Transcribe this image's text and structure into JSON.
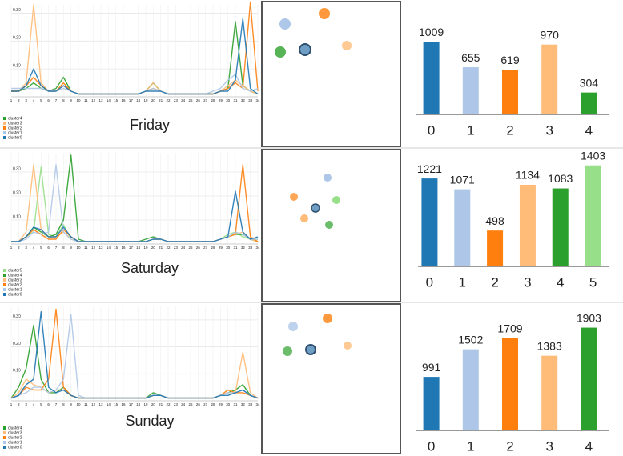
{
  "chart_data": [
    {
      "type": "line",
      "title": "Friday",
      "categories": [
        "1",
        "2",
        "3",
        "4",
        "5",
        "6",
        "7",
        "8",
        "9",
        "10",
        "11",
        "12",
        "13",
        "14",
        "15",
        "16",
        "17",
        "18",
        "19",
        "20",
        "21",
        "22",
        "23",
        "24",
        "25",
        "26",
        "27",
        "28",
        "29",
        "30",
        "31",
        "32",
        "33",
        "34"
      ],
      "ylim": [
        0,
        0.33
      ],
      "yticks": [
        {
          "value": 0.1,
          "label": "0.10"
        },
        {
          "value": 0.2,
          "label": "0.20"
        },
        {
          "value": 0.3,
          "label": "0.30"
        }
      ],
      "grid": true,
      "series": [
        {
          "name": "cluster4",
          "color": "#2ca02c",
          "values": [
            0.02,
            0.02,
            0.03,
            0.05,
            0.03,
            0.02,
            0.03,
            0.07,
            0.02,
            0.01,
            0.01,
            0.01,
            0.01,
            0.01,
            0.01,
            0.01,
            0.01,
            0.01,
            0.02,
            0.05,
            0.02,
            0.01,
            0.01,
            0.01,
            0.01,
            0.01,
            0.01,
            0.01,
            0.02,
            0.03,
            0.27,
            0.04,
            0.02,
            0.01
          ]
        },
        {
          "name": "cluster3",
          "color": "#ffbb78",
          "values": [
            0.02,
            0.02,
            0.05,
            0.33,
            0.05,
            0.02,
            0.02,
            0.04,
            0.02,
            0.01,
            0.01,
            0.01,
            0.01,
            0.01,
            0.01,
            0.01,
            0.01,
            0.01,
            0.02,
            0.05,
            0.02,
            0.01,
            0.01,
            0.01,
            0.01,
            0.01,
            0.01,
            0.01,
            0.02,
            0.04,
            0.06,
            0.04,
            0.02,
            0.01
          ]
        },
        {
          "name": "cluster2",
          "color": "#ff7f0e",
          "values": [
            0.02,
            0.02,
            0.04,
            0.07,
            0.04,
            0.02,
            0.02,
            0.05,
            0.02,
            0.01,
            0.01,
            0.01,
            0.01,
            0.01,
            0.01,
            0.01,
            0.01,
            0.01,
            0.02,
            0.03,
            0.02,
            0.01,
            0.01,
            0.01,
            0.01,
            0.01,
            0.01,
            0.01,
            0.02,
            0.03,
            0.05,
            0.03,
            0.34,
            0.02
          ]
        },
        {
          "name": "cluster1",
          "color": "#aec7e8",
          "values": [
            0.03,
            0.03,
            0.03,
            0.03,
            0.03,
            0.02,
            0.02,
            0.03,
            0.02,
            0.01,
            0.01,
            0.01,
            0.01,
            0.01,
            0.01,
            0.01,
            0.01,
            0.01,
            0.02,
            0.03,
            0.02,
            0.01,
            0.01,
            0.01,
            0.01,
            0.01,
            0.01,
            0.02,
            0.03,
            0.06,
            0.08,
            0.03,
            0.02,
            0.03
          ]
        },
        {
          "name": "cluster0",
          "color": "#1f77b4",
          "values": [
            0.02,
            0.02,
            0.04,
            0.1,
            0.04,
            0.02,
            0.02,
            0.04,
            0.02,
            0.01,
            0.01,
            0.01,
            0.01,
            0.01,
            0.01,
            0.01,
            0.01,
            0.01,
            0.02,
            0.02,
            0.02,
            0.01,
            0.01,
            0.01,
            0.01,
            0.01,
            0.01,
            0.01,
            0.02,
            0.02,
            0.06,
            0.28,
            0.03,
            0.01
          ]
        }
      ]
    },
    {
      "type": "bar",
      "categories": [
        "0",
        "1",
        "2",
        "3",
        "4"
      ],
      "values": [
        1009,
        655,
        619,
        970,
        304
      ],
      "colors": [
        "#1f77b4",
        "#aec7e8",
        "#ff7f0e",
        "#ffbb78",
        "#2ca02c"
      ],
      "ylim": [
        0,
        1500
      ]
    },
    {
      "type": "line",
      "title": "Saturday",
      "categories": [
        "1",
        "2",
        "3",
        "4",
        "5",
        "6",
        "7",
        "8",
        "9",
        "10",
        "11",
        "12",
        "13",
        "14",
        "15",
        "16",
        "17",
        "18",
        "19",
        "20",
        "21",
        "22",
        "23",
        "24",
        "25",
        "26",
        "27",
        "28",
        "29",
        "30",
        "31",
        "32",
        "33",
        "34"
      ],
      "ylim": [
        0,
        0.38
      ],
      "yticks": [
        {
          "value": 0.1,
          "label": "0.10"
        },
        {
          "value": 0.2,
          "label": "0.20"
        },
        {
          "value": 0.3,
          "label": "0.30"
        }
      ],
      "grid": true,
      "series": [
        {
          "name": "cluster5",
          "color": "#98df8a",
          "values": [
            0.01,
            0.01,
            0.03,
            0.05,
            0.32,
            0.04,
            0.03,
            0.08,
            0.02,
            0.01,
            0.01,
            0.01,
            0.01,
            0.01,
            0.01,
            0.01,
            0.01,
            0.01,
            0.01,
            0.02,
            0.02,
            0.01,
            0.01,
            0.01,
            0.01,
            0.01,
            0.01,
            0.01,
            0.02,
            0.04,
            0.05,
            0.03,
            0.02,
            0.02
          ]
        },
        {
          "name": "cluster4",
          "color": "#2ca02c",
          "values": [
            0.01,
            0.01,
            0.03,
            0.07,
            0.05,
            0.03,
            0.04,
            0.1,
            0.37,
            0.02,
            0.01,
            0.01,
            0.01,
            0.01,
            0.01,
            0.01,
            0.01,
            0.01,
            0.02,
            0.03,
            0.02,
            0.01,
            0.01,
            0.01,
            0.01,
            0.01,
            0.01,
            0.01,
            0.02,
            0.03,
            0.04,
            0.04,
            0.02,
            0.01
          ]
        },
        {
          "name": "cluster3",
          "color": "#ffbb78",
          "values": [
            0.01,
            0.01,
            0.05,
            0.33,
            0.06,
            0.03,
            0.03,
            0.05,
            0.02,
            0.01,
            0.01,
            0.01,
            0.01,
            0.01,
            0.01,
            0.01,
            0.01,
            0.01,
            0.01,
            0.02,
            0.02,
            0.01,
            0.01,
            0.01,
            0.01,
            0.01,
            0.01,
            0.01,
            0.02,
            0.03,
            0.04,
            0.05,
            0.02,
            0.01
          ]
        },
        {
          "name": "cluster2",
          "color": "#ff7f0e",
          "values": [
            0.01,
            0.01,
            0.03,
            0.06,
            0.04,
            0.02,
            0.02,
            0.06,
            0.03,
            0.01,
            0.01,
            0.01,
            0.01,
            0.01,
            0.01,
            0.01,
            0.01,
            0.01,
            0.01,
            0.02,
            0.02,
            0.01,
            0.01,
            0.01,
            0.01,
            0.01,
            0.01,
            0.01,
            0.02,
            0.03,
            0.04,
            0.33,
            0.03,
            0.01
          ]
        },
        {
          "name": "cluster1",
          "color": "#aec7e8",
          "values": [
            0.01,
            0.01,
            0.02,
            0.05,
            0.04,
            0.05,
            0.33,
            0.05,
            0.02,
            0.01,
            0.01,
            0.01,
            0.01,
            0.01,
            0.01,
            0.01,
            0.01,
            0.01,
            0.01,
            0.02,
            0.02,
            0.01,
            0.01,
            0.01,
            0.01,
            0.01,
            0.01,
            0.01,
            0.02,
            0.03,
            0.05,
            0.04,
            0.02,
            0.02
          ]
        },
        {
          "name": "cluster0",
          "color": "#1f77b4",
          "values": [
            0.01,
            0.01,
            0.03,
            0.07,
            0.06,
            0.03,
            0.03,
            0.07,
            0.03,
            0.01,
            0.01,
            0.01,
            0.01,
            0.01,
            0.01,
            0.01,
            0.01,
            0.01,
            0.01,
            0.02,
            0.02,
            0.01,
            0.01,
            0.01,
            0.01,
            0.01,
            0.01,
            0.01,
            0.02,
            0.03,
            0.22,
            0.05,
            0.02,
            0.03
          ]
        }
      ]
    },
    {
      "type": "bar",
      "categories": [
        "0",
        "1",
        "2",
        "3",
        "4",
        "5"
      ],
      "values": [
        1221,
        1071,
        498,
        1134,
        1083,
        1403
      ],
      "colors": [
        "#1f77b4",
        "#aec7e8",
        "#ff7f0e",
        "#ffbb78",
        "#2ca02c",
        "#98df8a"
      ],
      "ylim": [
        0,
        1500
      ]
    },
    {
      "type": "line",
      "title": "Sunday",
      "categories": [
        "1",
        "2",
        "3",
        "4",
        "5",
        "6",
        "7",
        "8",
        "9",
        "10",
        "11",
        "12",
        "13",
        "14",
        "15",
        "16",
        "17",
        "18",
        "19",
        "20",
        "21",
        "22",
        "23",
        "24",
        "25",
        "26",
        "27",
        "28",
        "29",
        "30",
        "31",
        "32",
        "33",
        "34"
      ],
      "ylim": [
        0,
        0.35
      ],
      "yticks": [
        {
          "value": 0.1,
          "label": "0.10"
        },
        {
          "value": 0.2,
          "label": "0.20"
        },
        {
          "value": 0.3,
          "label": "0.30"
        }
      ],
      "grid": true,
      "series": [
        {
          "name": "cluster4",
          "color": "#2ca02c",
          "values": [
            0.01,
            0.05,
            0.12,
            0.28,
            0.08,
            0.03,
            0.03,
            0.05,
            0.02,
            0.01,
            0.01,
            0.01,
            0.01,
            0.01,
            0.01,
            0.01,
            0.01,
            0.01,
            0.01,
            0.03,
            0.02,
            0.01,
            0.01,
            0.01,
            0.01,
            0.01,
            0.01,
            0.01,
            0.02,
            0.03,
            0.04,
            0.06,
            0.02,
            0.01
          ]
        },
        {
          "name": "cluster3",
          "color": "#ffbb78",
          "values": [
            0.01,
            0.03,
            0.08,
            0.06,
            0.05,
            0.03,
            0.04,
            0.04,
            0.02,
            0.01,
            0.01,
            0.01,
            0.01,
            0.01,
            0.01,
            0.01,
            0.01,
            0.01,
            0.01,
            0.02,
            0.02,
            0.01,
            0.01,
            0.01,
            0.01,
            0.01,
            0.01,
            0.01,
            0.02,
            0.03,
            0.03,
            0.18,
            0.03,
            0.01
          ]
        },
        {
          "name": "cluster2",
          "color": "#ff7f0e",
          "values": [
            0.01,
            0.02,
            0.05,
            0.04,
            0.04,
            0.08,
            0.34,
            0.05,
            0.02,
            0.01,
            0.01,
            0.01,
            0.01,
            0.01,
            0.01,
            0.01,
            0.01,
            0.01,
            0.01,
            0.02,
            0.02,
            0.01,
            0.01,
            0.01,
            0.01,
            0.01,
            0.01,
            0.01,
            0.02,
            0.04,
            0.03,
            0.03,
            0.02,
            0.01
          ]
        },
        {
          "name": "cluster1",
          "color": "#aec7e8",
          "values": [
            0.01,
            0.02,
            0.03,
            0.05,
            0.05,
            0.03,
            0.04,
            0.08,
            0.32,
            0.02,
            0.01,
            0.01,
            0.01,
            0.01,
            0.01,
            0.01,
            0.01,
            0.01,
            0.01,
            0.02,
            0.02,
            0.01,
            0.01,
            0.01,
            0.01,
            0.01,
            0.01,
            0.01,
            0.02,
            0.03,
            0.03,
            0.04,
            0.02,
            0.01
          ]
        },
        {
          "name": "cluster0",
          "color": "#1f77b4",
          "values": [
            0.01,
            0.02,
            0.06,
            0.08,
            0.33,
            0.05,
            0.03,
            0.04,
            0.02,
            0.01,
            0.01,
            0.01,
            0.01,
            0.01,
            0.01,
            0.01,
            0.01,
            0.01,
            0.01,
            0.02,
            0.02,
            0.01,
            0.01,
            0.01,
            0.01,
            0.01,
            0.01,
            0.01,
            0.02,
            0.02,
            0.03,
            0.04,
            0.02,
            0.01
          ]
        }
      ]
    },
    {
      "type": "bar",
      "categories": [
        "0",
        "1",
        "2",
        "3",
        "4"
      ],
      "values": [
        991,
        1502,
        1709,
        1383,
        1903
      ],
      "colors": [
        "#1f77b4",
        "#aec7e8",
        "#ff7f0e",
        "#ffbb78",
        "#2ca02c"
      ],
      "ylim": [
        0,
        2000
      ]
    }
  ]
}
